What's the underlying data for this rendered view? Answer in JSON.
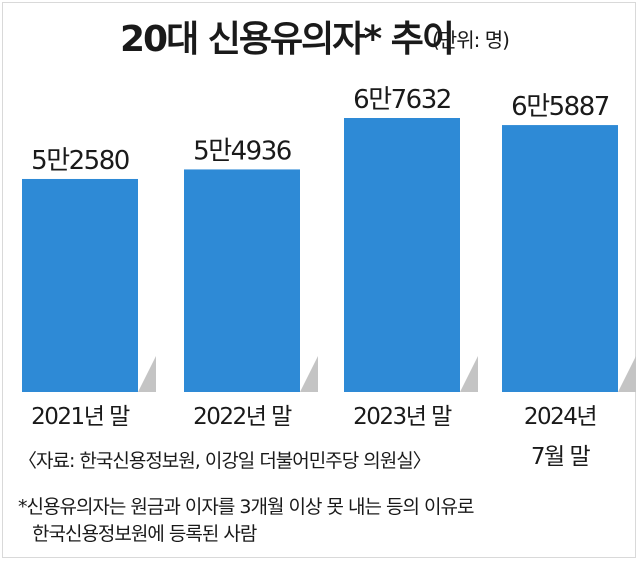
{
  "header": {
    "title": "20대 신용유의자* 추이",
    "unit": "(단위: 명)"
  },
  "chart_data": {
    "type": "bar",
    "title": "20대 신용유의자* 추이",
    "unit": "(단위: 명)",
    "categories": [
      "2021년 말",
      "2022년 말",
      "2023년 말",
      [
        "2024년",
        "7월 말"
      ]
    ],
    "values": [
      52580,
      54936,
      67632,
      65887
    ],
    "value_labels": [
      "5만2580",
      "5만4936",
      "6만7632",
      "6만5887"
    ],
    "colors": {
      "bar": "#2e8ad6",
      "shadow": "#c4c4c4"
    }
  },
  "footer": {
    "source": "〈자료:  한국신용정보원,  이강일  더불어민주당  의원실〉",
    "note_line1": "*신용유의자는  원금과  이자를  3개월  이상  못  내는  등의  이유로",
    "note_line2": "한국신용정보원에  등록된  사람"
  }
}
